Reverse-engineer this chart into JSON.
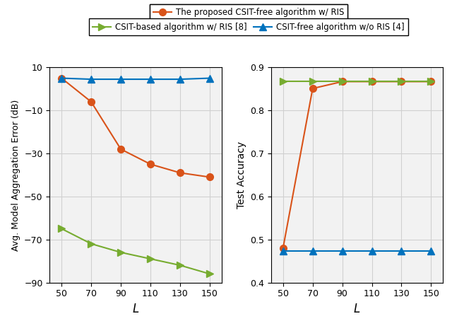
{
  "x": [
    50,
    70,
    90,
    110,
    130,
    150
  ],
  "left_orange": [
    5,
    -6,
    -28,
    -35,
    -39,
    -41
  ],
  "left_green": [
    -65,
    -72,
    -76,
    -79,
    -82,
    -86
  ],
  "left_blue": [
    5,
    4.5,
    4.5,
    4.5,
    4.5,
    5
  ],
  "right_orange": [
    0.48,
    0.851,
    0.867,
    0.867,
    0.867,
    0.867
  ],
  "right_green": [
    0.867,
    0.867,
    0.867,
    0.867,
    0.867,
    0.867
  ],
  "right_blue": [
    0.474,
    0.474,
    0.474,
    0.474,
    0.474,
    0.474
  ],
  "color_orange": "#D95319",
  "color_green": "#77AC30",
  "color_blue": "#0072BD",
  "label_orange": "The proposed CSIT-free algorithm w/ RIS",
  "label_green": "CSIT-based algorithm w/ RIS [8]",
  "label_blue": "CSIT-free algorithm w/o RIS [4]",
  "left_ylabel": "Avg. Model Aggregation Error (dB)",
  "right_ylabel": "Test Accuracy",
  "xlabel": "L",
  "left_ylim": [
    -90,
    10
  ],
  "left_yticks": [
    -90,
    -70,
    -50,
    -30,
    -10,
    10
  ],
  "right_ylim": [
    0.4,
    0.9
  ],
  "right_yticks": [
    0.4,
    0.5,
    0.6,
    0.7,
    0.8,
    0.9
  ],
  "xticks": [
    50,
    70,
    90,
    110,
    130,
    150
  ],
  "marker_orange": "o",
  "marker_green": ">",
  "marker_blue": "^",
  "grid_color": "#D0D0D0",
  "bg_color": "#F2F2F2"
}
